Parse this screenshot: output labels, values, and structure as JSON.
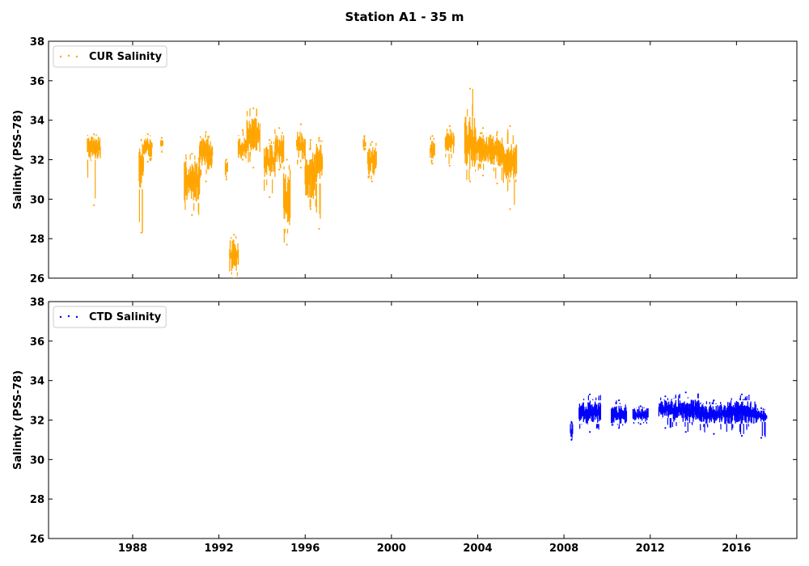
{
  "figure": {
    "title": "Station A1 - 35 m"
  },
  "chart_data": [
    {
      "type": "scatter",
      "title": "",
      "xlabel": "",
      "ylabel": "Salinity (PSS-78)",
      "xlim": [
        1984.1,
        2018.8
      ],
      "ylim": [
        26,
        38
      ],
      "yticks": [
        26,
        28,
        30,
        32,
        34,
        36,
        38
      ],
      "xticks": [
        1988,
        1992,
        1996,
        2000,
        2004,
        2008,
        2012,
        2016
      ],
      "xtick_labels_visible": false,
      "grid": false,
      "legend_position": "top-left",
      "series": [
        {
          "name": "CUR Salinity",
          "color": "#ffa500",
          "segments": [
            {
              "x0": 1985.9,
              "x1": 1986.5,
              "lo": 32.0,
              "hi": 33.2,
              "min": 29.7,
              "max": 33.3
            },
            {
              "x0": 1988.3,
              "x1": 1988.5,
              "lo": 30.5,
              "hi": 32.9,
              "min": 28.3,
              "max": 33.0
            },
            {
              "x0": 1988.5,
              "x1": 1988.9,
              "lo": 32.1,
              "hi": 33.2,
              "min": 31.9,
              "max": 33.3
            },
            {
              "x0": 1989.3,
              "x1": 1989.4,
              "lo": 32.5,
              "hi": 33.1,
              "min": 32.4,
              "max": 33.1
            },
            {
              "x0": 1990.4,
              "x1": 1991.1,
              "lo": 29.8,
              "hi": 32.0,
              "min": 29.2,
              "max": 32.3
            },
            {
              "x0": 1991.1,
              "x1": 1991.7,
              "lo": 31.5,
              "hi": 33.1,
              "min": 30.9,
              "max": 33.4
            },
            {
              "x0": 1992.3,
              "x1": 1992.4,
              "lo": 31.2,
              "hi": 31.9,
              "min": 31.0,
              "max": 32.0
            },
            {
              "x0": 1992.5,
              "x1": 1992.9,
              "lo": 26.3,
              "hi": 28.0,
              "min": 26.0,
              "max": 28.2
            },
            {
              "x0": 1992.9,
              "x1": 1993.3,
              "lo": 32.0,
              "hi": 33.2,
              "min": 32.0,
              "max": 33.5
            },
            {
              "x0": 1993.3,
              "x1": 1993.9,
              "lo": 32.4,
              "hi": 34.2,
              "min": 31.6,
              "max": 34.6
            },
            {
              "x0": 1994.1,
              "x1": 1994.6,
              "lo": 31.0,
              "hi": 32.8,
              "min": 30.1,
              "max": 33.0
            },
            {
              "x0": 1994.6,
              "x1": 1995.0,
              "lo": 31.8,
              "hi": 33.3,
              "min": 31.5,
              "max": 33.6
            },
            {
              "x0": 1995.0,
              "x1": 1995.3,
              "lo": 28.5,
              "hi": 31.5,
              "min": 27.7,
              "max": 32.0
            },
            {
              "x0": 1995.6,
              "x1": 1996.0,
              "lo": 32.0,
              "hi": 33.5,
              "min": 31.6,
              "max": 33.8
            },
            {
              "x0": 1996.0,
              "x1": 1996.5,
              "lo": 30.0,
              "hi": 32.5,
              "min": 29.5,
              "max": 33.0
            },
            {
              "x0": 1996.5,
              "x1": 1996.8,
              "lo": 30.8,
              "hi": 32.9,
              "min": 28.5,
              "max": 33.1
            },
            {
              "x0": 1998.7,
              "x1": 1998.8,
              "lo": 32.6,
              "hi": 33.1,
              "min": 32.5,
              "max": 33.2
            },
            {
              "x0": 1998.9,
              "x1": 1999.3,
              "lo": 31.2,
              "hi": 32.7,
              "min": 30.9,
              "max": 32.9
            },
            {
              "x0": 2001.8,
              "x1": 2002.0,
              "lo": 32.0,
              "hi": 33.0,
              "min": 31.8,
              "max": 33.2
            },
            {
              "x0": 2002.5,
              "x1": 2002.9,
              "lo": 32.3,
              "hi": 33.4,
              "min": 31.7,
              "max": 33.7
            },
            {
              "x0": 2003.4,
              "x1": 2003.9,
              "lo": 31.5,
              "hi": 34.2,
              "min": 30.9,
              "max": 35.6
            },
            {
              "x0": 2003.9,
              "x1": 2004.6,
              "lo": 31.8,
              "hi": 33.3,
              "min": 31.2,
              "max": 33.6
            },
            {
              "x0": 2004.6,
              "x1": 2005.2,
              "lo": 31.6,
              "hi": 33.2,
              "min": 30.8,
              "max": 33.4
            },
            {
              "x0": 2005.2,
              "x1": 2005.8,
              "lo": 31.0,
              "hi": 32.8,
              "min": 29.5,
              "max": 33.7
            }
          ]
        }
      ]
    },
    {
      "type": "scatter",
      "title": "",
      "xlabel": "",
      "ylabel": "Salinity (PSS-78)",
      "xlim": [
        1984.1,
        2018.8
      ],
      "ylim": [
        26,
        38
      ],
      "yticks": [
        26,
        28,
        30,
        32,
        34,
        36,
        38
      ],
      "xticks": [
        1988,
        1992,
        1996,
        2000,
        2004,
        2008,
        2012,
        2016
      ],
      "xtick_labels": [
        "1988",
        "1992",
        "1996",
        "2000",
        "2004",
        "2008",
        "2012",
        "2016"
      ],
      "grid": false,
      "legend_position": "top-left",
      "series": [
        {
          "name": "CTD Salinity",
          "color": "#0000ff",
          "segments": [
            {
              "x0": 2008.3,
              "x1": 2008.4,
              "lo": 31.1,
              "hi": 31.8,
              "min": 31.0,
              "max": 31.9
            },
            {
              "x0": 2008.7,
              "x1": 2009.7,
              "lo": 31.8,
              "hi": 33.0,
              "min": 31.4,
              "max": 33.3
            },
            {
              "x0": 2010.2,
              "x1": 2010.9,
              "lo": 31.8,
              "hi": 32.8,
              "min": 31.6,
              "max": 33.0
            },
            {
              "x0": 2011.2,
              "x1": 2011.9,
              "lo": 31.9,
              "hi": 32.6,
              "min": 31.8,
              "max": 32.7
            },
            {
              "x0": 2012.4,
              "x1": 2013.0,
              "lo": 32.1,
              "hi": 33.0,
              "min": 31.6,
              "max": 33.2
            },
            {
              "x0": 2013.0,
              "x1": 2014.3,
              "lo": 31.9,
              "hi": 33.1,
              "min": 31.4,
              "max": 33.4
            },
            {
              "x0": 2014.3,
              "x1": 2015.6,
              "lo": 31.8,
              "hi": 32.8,
              "min": 31.3,
              "max": 33.0
            },
            {
              "x0": 2015.6,
              "x1": 2016.9,
              "lo": 31.8,
              "hi": 33.0,
              "min": 31.2,
              "max": 33.3
            },
            {
              "x0": 2016.9,
              "x1": 2017.4,
              "lo": 31.9,
              "hi": 32.5,
              "min": 31.1,
              "max": 32.6
            }
          ]
        }
      ]
    }
  ]
}
